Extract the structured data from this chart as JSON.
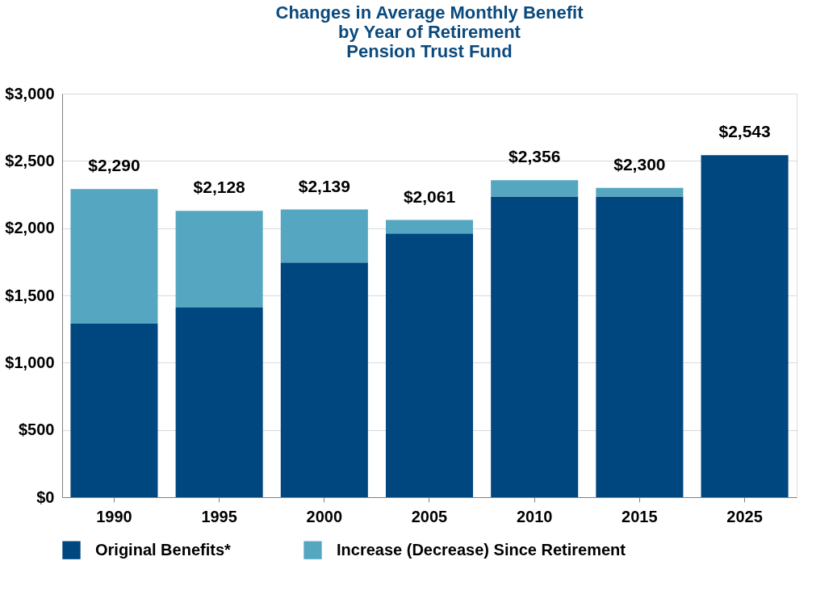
{
  "chart_data": {
    "type": "bar",
    "title": "Changes in Average Monthly Benefit\nby Year of Retirement\nPension Trust Fund",
    "categories": [
      "1990",
      "1995",
      "2000",
      "2005",
      "2010",
      "2015",
      "2025"
    ],
    "stacked": true,
    "series": [
      {
        "name": "Original Benefits*",
        "color": "#00467f",
        "values": [
          1290,
          1410,
          1745,
          1960,
          2235,
          2235,
          2543
        ]
      },
      {
        "name": "Increase (Decrease) Since Retirement",
        "color": "#55a7c1",
        "values": [
          1000,
          718,
          394,
          101,
          121,
          65,
          null
        ]
      }
    ],
    "totals": [
      "$2,290",
      "$2,128",
      "$2,139",
      "$2,061",
      "$2,356",
      "$2,300",
      "$2,543"
    ],
    "ylim": [
      0,
      3000
    ],
    "yticks": [
      {
        "value": 0,
        "label": "$0"
      },
      {
        "value": 500,
        "label": "$500"
      },
      {
        "value": 1000,
        "label": "$1,000"
      },
      {
        "value": 1500,
        "label": "$1,500"
      },
      {
        "value": 2000,
        "label": "$2,000"
      },
      {
        "value": 2500,
        "label": "$2,500"
      },
      {
        "value": 3000,
        "label": "$3,000"
      }
    ],
    "grid": "y",
    "legend": "bottom"
  }
}
